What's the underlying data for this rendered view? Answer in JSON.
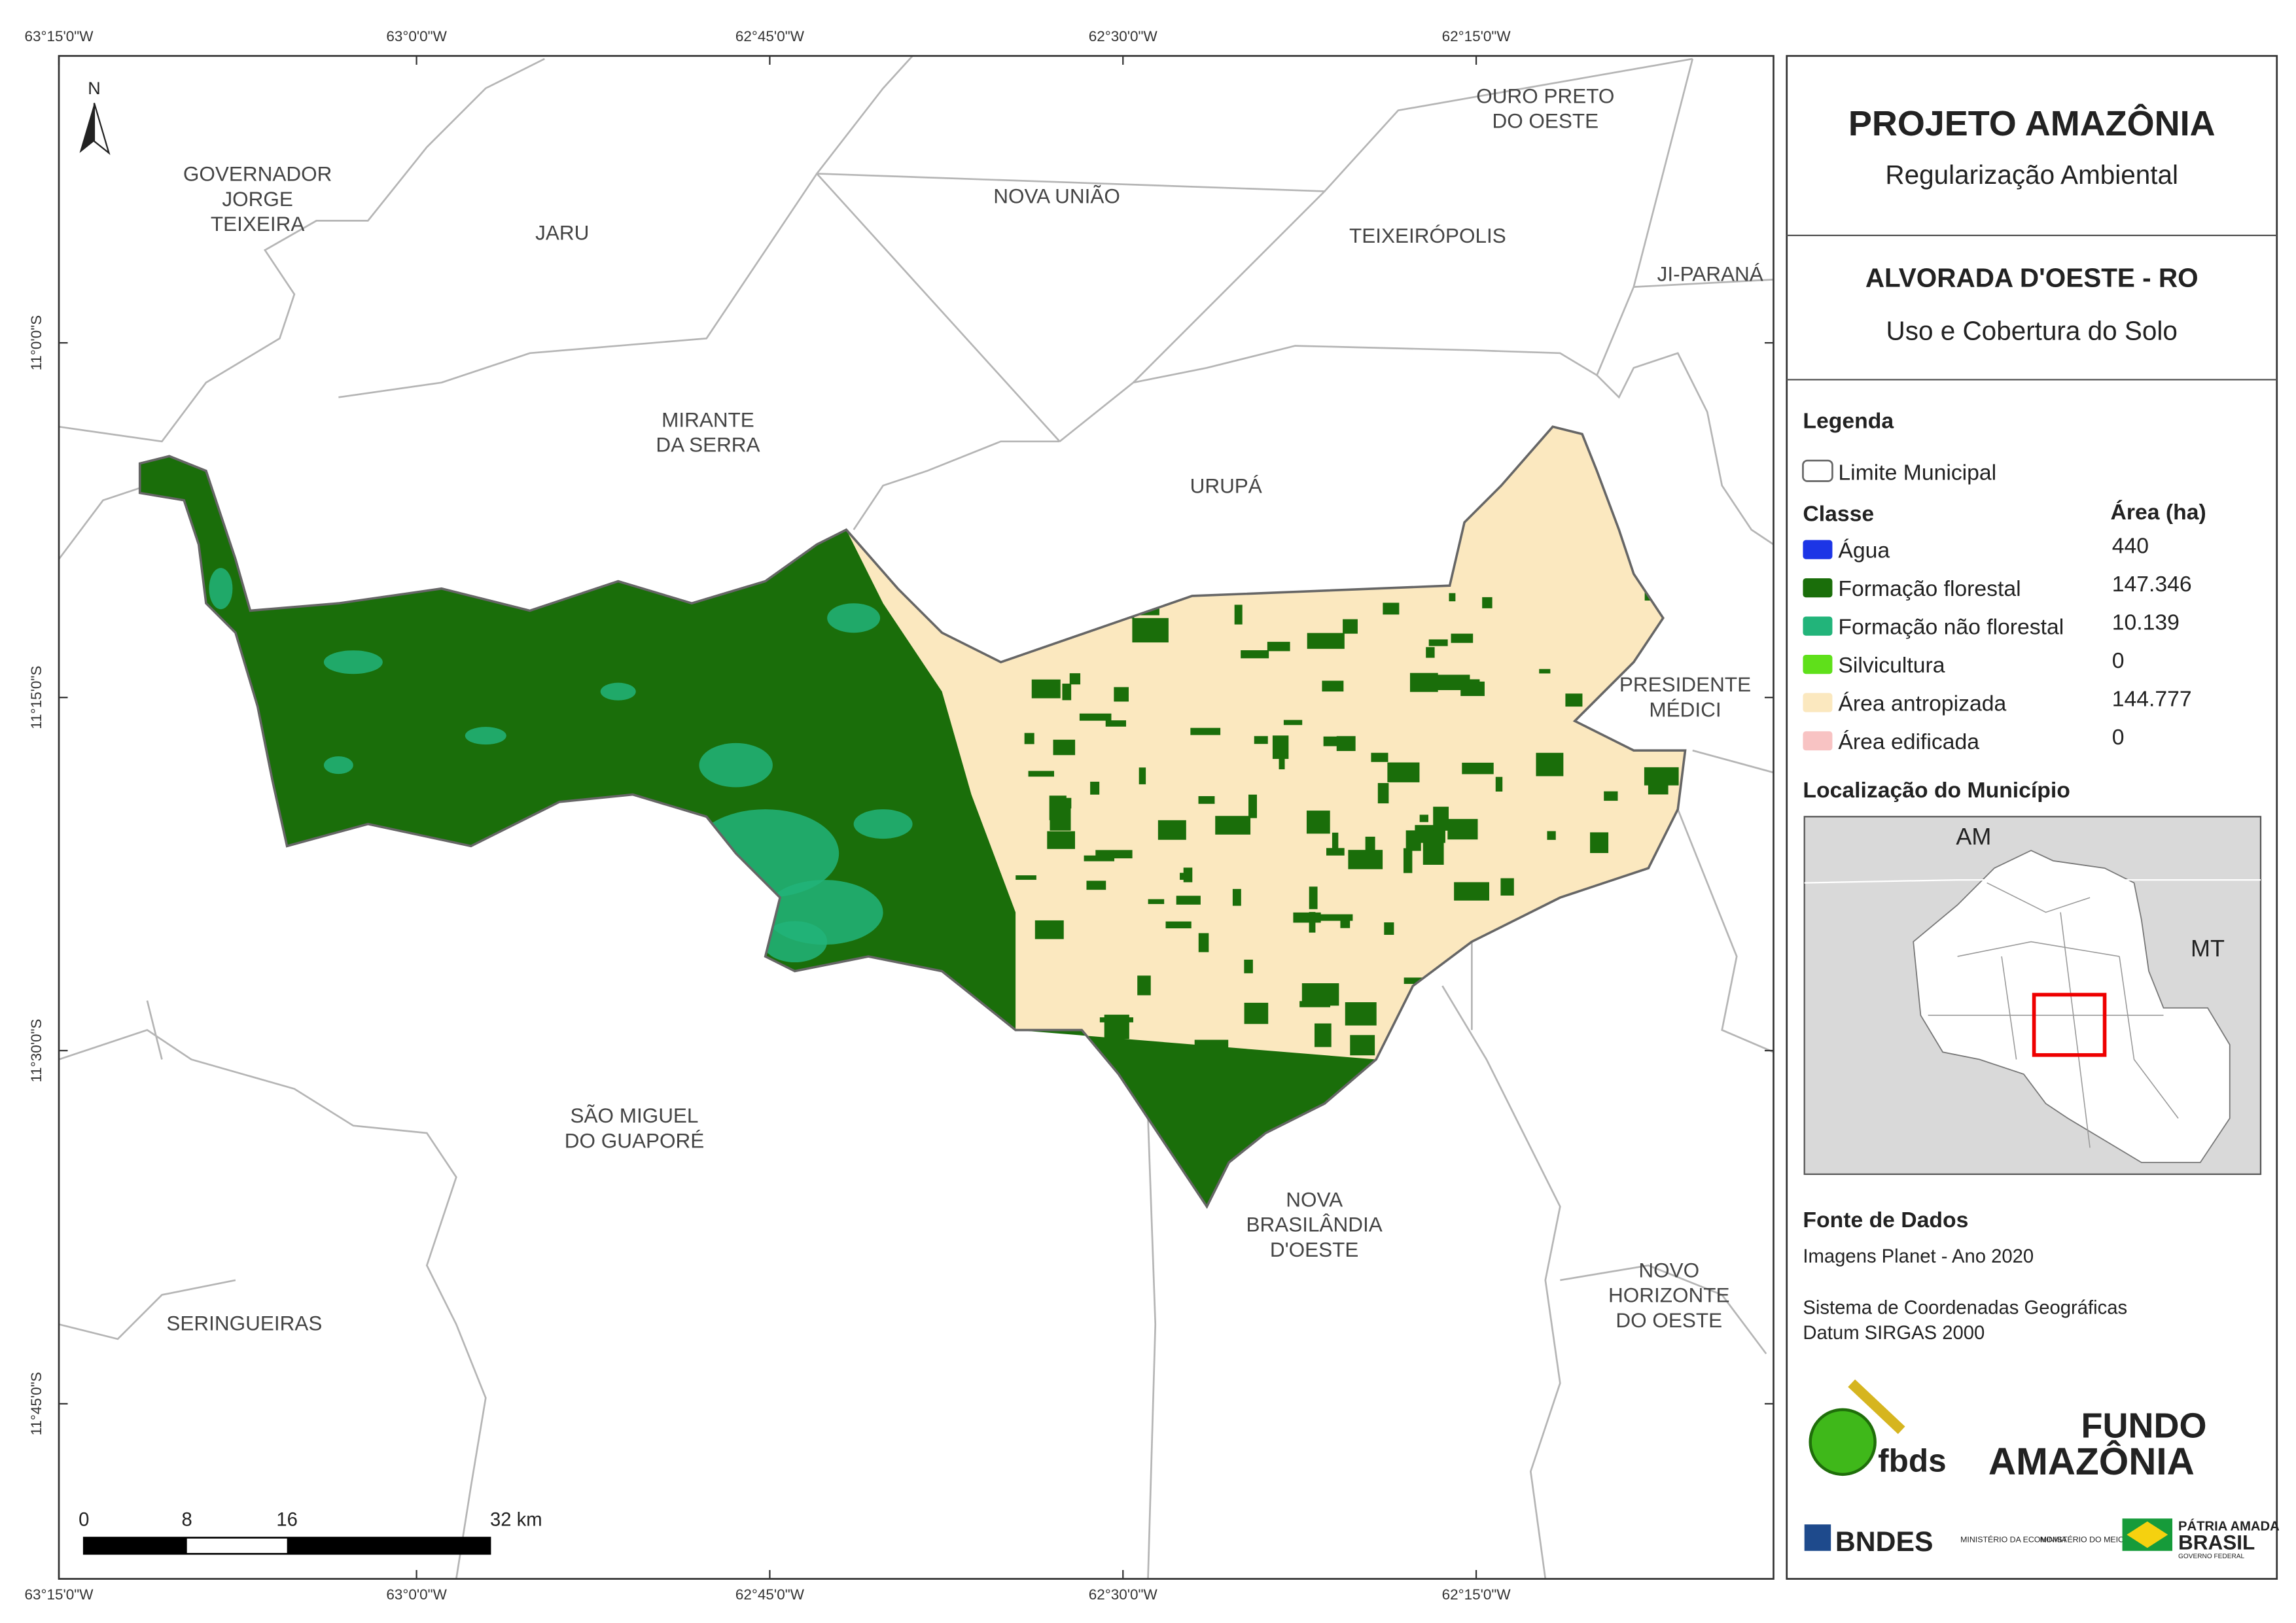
{
  "header": {
    "title": "PROJETO AMAZÔNIA",
    "subtitle": "Regularização Ambiental",
    "municipality": "ALVORADA D'OESTE - RO",
    "theme": "Uso e Cobertura do Solo"
  },
  "map": {
    "north": "N",
    "lon_ticks": [
      "63°15'0\"W",
      "63°0'0\"W",
      "62°45'0\"W",
      "62°30'0\"W",
      "62°15'0\"W"
    ],
    "lat_ticks": [
      "11°0'0\"S",
      "11°15'0\"S",
      "11°30'0\"S",
      "11°45'0\"S"
    ],
    "places": [
      [
        "GOVERNADOR",
        "JORGE",
        "TEIXEIRA"
      ],
      [
        "JARU"
      ],
      [
        "NOVA UNIÃO"
      ],
      [
        "OURO PRETO",
        "DO OESTE"
      ],
      [
        "TEIXEIRÓPOLIS"
      ],
      [
        "JI-PARANÁ"
      ],
      [
        "MIRANTE",
        "DA SERRA"
      ],
      [
        "URUPÁ"
      ],
      [
        "PRESIDENTE",
        "MÉDICI"
      ],
      [
        "SÃO MIGUEL",
        "DO GUAPORÉ"
      ],
      [
        "NOVA",
        "BRASILÂNDIA",
        "D'OESTE"
      ],
      [
        "NOVO",
        "HORIZONTE",
        "DO OESTE"
      ],
      [
        "SERINGUEIRAS"
      ]
    ],
    "scale_labels": [
      "0",
      "8",
      "16",
      "32 km"
    ],
    "forest_color": "#1a6e0a",
    "nonforest_color": "#22b47a",
    "anthropic_color": "#fbe8bf"
  },
  "legend": {
    "title": "Legenda",
    "boundary": "Limite Municipal",
    "class_header": "Classe",
    "area_header": "Área (ha)",
    "classes": [
      {
        "name": "Água",
        "area": "440",
        "color": "#1c35e6"
      },
      {
        "name": "Formação florestal",
        "area": "147.346",
        "color": "#1a6e0a"
      },
      {
        "name": "Formação não florestal",
        "area": "10.139",
        "color": "#22b47a"
      },
      {
        "name": "Silvicultura",
        "area": "0",
        "color": "#5fe01a"
      },
      {
        "name": "Área antropizada",
        "area": "144.777",
        "color": "#fbe8bf"
      },
      {
        "name": "Área edificada",
        "area": "0",
        "color": "#f8c3c3"
      }
    ]
  },
  "location": {
    "title": "Localização do Município",
    "labels": [
      "AM",
      "MT"
    ]
  },
  "sources": {
    "title": "Fonte de Dados",
    "lines": [
      "Imagens Planet - Ano 2020",
      "Sistema de Coordenadas Geográficas",
      "Datum SIRGAS 2000"
    ]
  },
  "logos": {
    "fbds": "fbds",
    "fundo": "FUNDO",
    "amazonia": "AMAZÔNIA",
    "bndes": "BNDES",
    "ministry_economy": "MINISTÉRIO DA ECONOMIA",
    "ministry_environment": "MINISTÉRIO DO MEIO AMBIENTE",
    "patria": "PÁTRIA AMADA",
    "brasil": "BRASIL",
    "governo": "GOVERNO FEDERAL"
  }
}
